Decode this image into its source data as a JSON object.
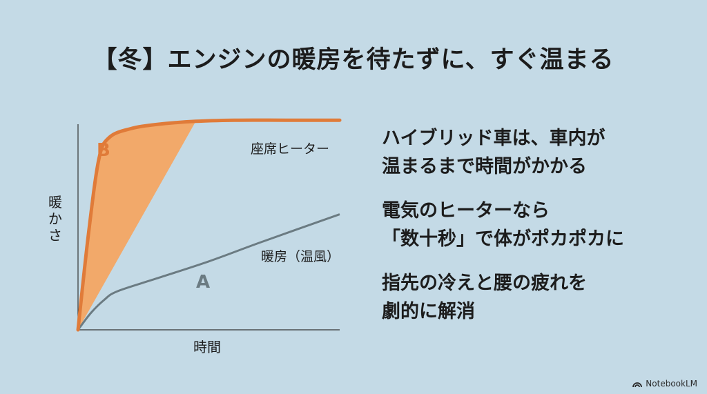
{
  "title": "【冬】エンジンの暖房を待たずに、すぐ温まる",
  "chart_data": {
    "type": "line",
    "ylabel": "暖かさ",
    "xlabel": "時間",
    "series": [
      {
        "name": "座席ヒーター",
        "letter": "B",
        "color": "#e07b39",
        "x": [
          0,
          4,
          8,
          12,
          20,
          30,
          45,
          60,
          80,
          100
        ],
        "y": [
          0,
          45,
          80,
          90,
          94,
          96,
          97.5,
          98,
          98,
          98
        ]
      },
      {
        "name": "暖房（温風）",
        "letter": "A",
        "color": "#6b7b82",
        "x": [
          0,
          5,
          10,
          15,
          30,
          50,
          70,
          100
        ],
        "y": [
          0,
          8,
          14,
          18,
          24,
          32,
          41,
          54
        ]
      }
    ],
    "fill_between": {
      "color": "#f2a96a"
    }
  },
  "bullets": [
    "ハイブリッド車は、車内が\n温まるまで時間がかかる",
    "電気のヒーターなら\n「数十秒」で体がポカポカに",
    "指先の冷えと腰の疲れを\n劇的に解消"
  ],
  "brand": "NotebookLM"
}
